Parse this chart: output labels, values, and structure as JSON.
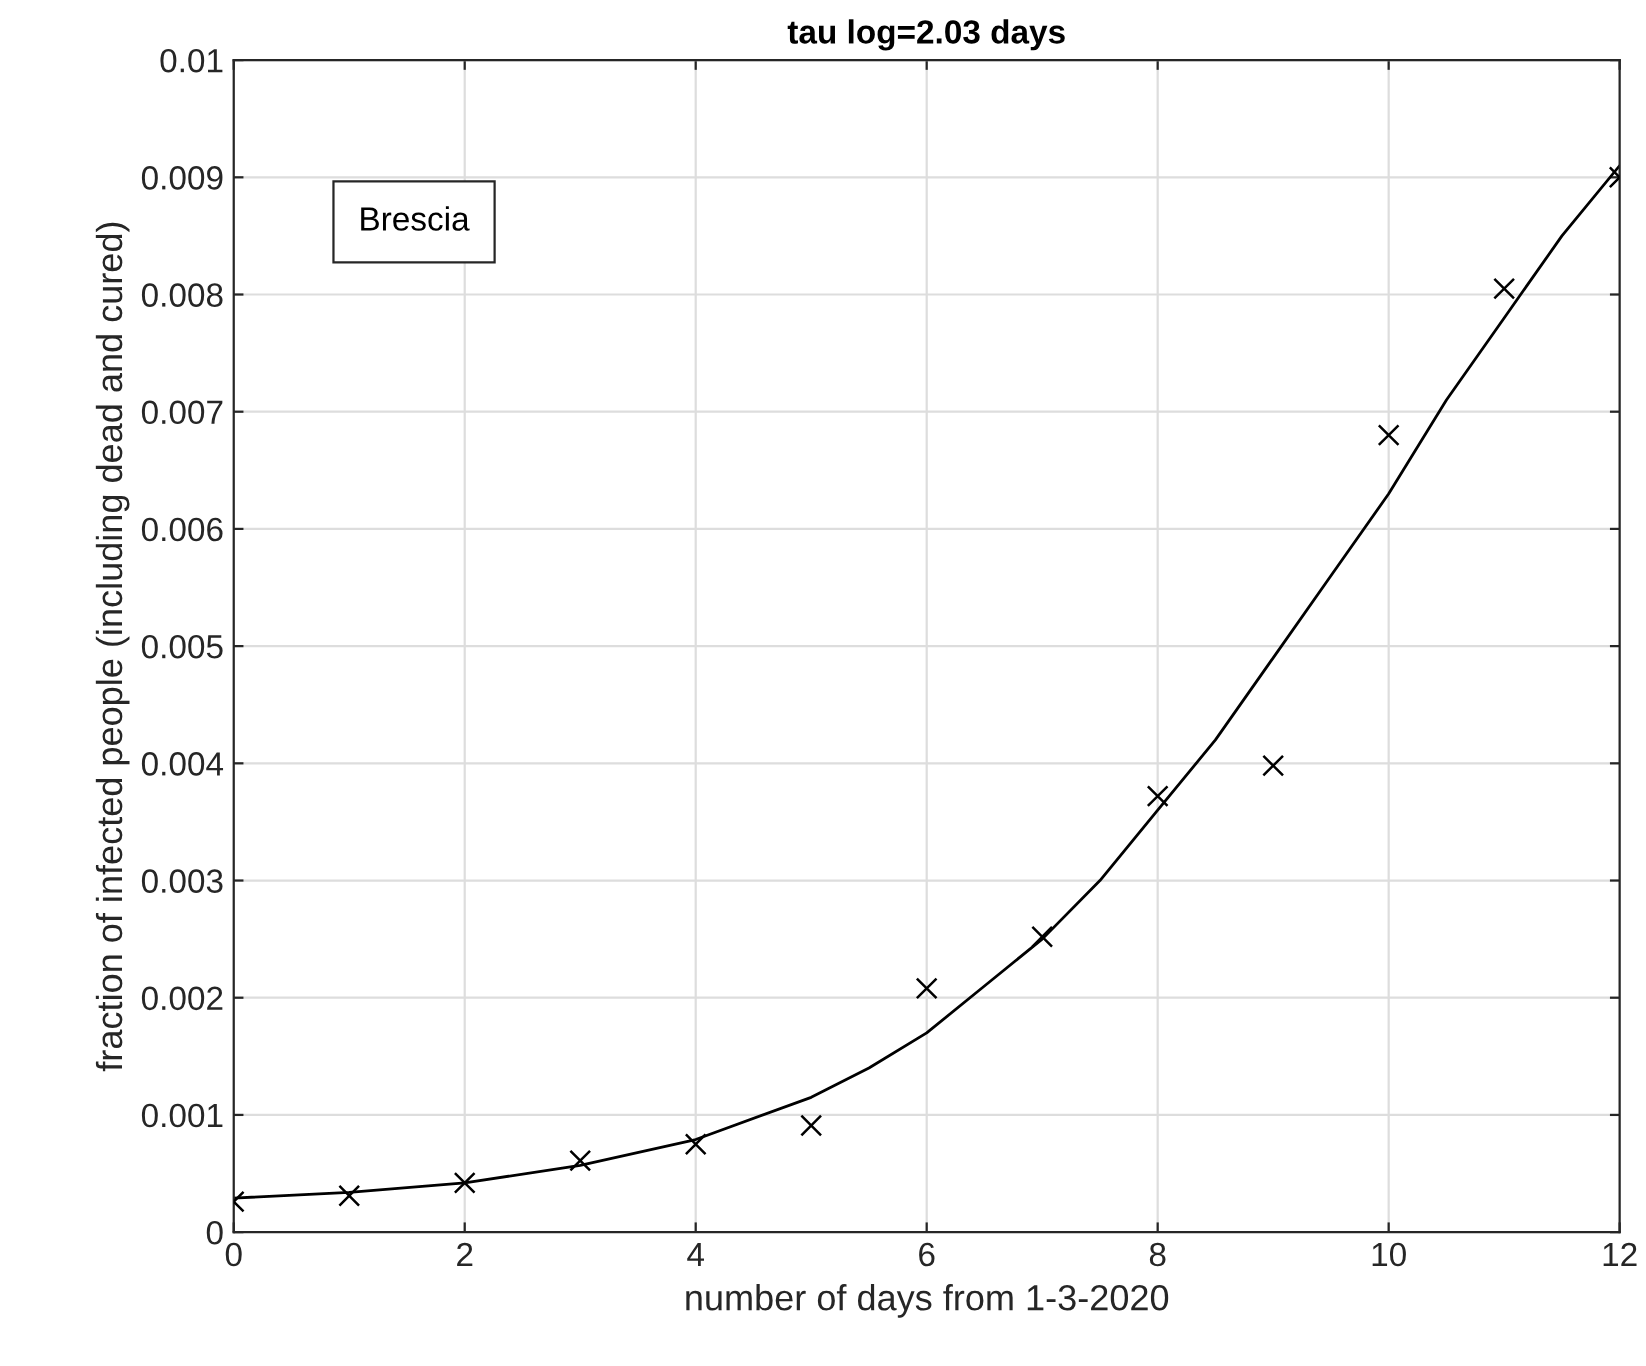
{
  "chart_data": {
    "type": "scatter",
    "title": "tau log=2.03 days",
    "xlabel": "number of days from 1-3-2020",
    "ylabel": "fraction of infected people (including dead and cured)",
    "annotations": [
      "Brescia"
    ],
    "xlim": [
      0,
      12
    ],
    "ylim": [
      0,
      0.01
    ],
    "xticks": [
      0,
      2,
      4,
      6,
      8,
      10,
      12
    ],
    "yticks": [
      0,
      0.001,
      0.002,
      0.003,
      0.004,
      0.005,
      0.006,
      0.007,
      0.008,
      0.009,
      0.01
    ],
    "grid": true,
    "legend": false,
    "series": [
      {
        "marker": "cross",
        "color": "#000000",
        "x": [
          0,
          1,
          2,
          3,
          4,
          5,
          6,
          7,
          8,
          9,
          10,
          11,
          12
        ],
        "values": [
          0.00026,
          0.00031,
          0.00042,
          0.00061,
          0.00075,
          0.00091,
          0.00208,
          0.00252,
          0.00372,
          0.00398,
          0.0068,
          0.00805,
          0.009
        ]
      },
      {
        "type": "line",
        "marker": "none",
        "line_style": "solid",
        "color": "#000000",
        "x": [
          0,
          1,
          2,
          3,
          4,
          5,
          5.5,
          6,
          6.5,
          7,
          7.5,
          8,
          8.5,
          9,
          9.5,
          10,
          10.5,
          11,
          11.5,
          12
        ],
        "values": [
          0.00029,
          0.00034,
          0.00042,
          0.00057,
          0.00079,
          0.00115,
          0.0014,
          0.0017,
          0.0021,
          0.0025,
          0.003,
          0.0036,
          0.0042,
          0.0049,
          0.0056,
          0.0063,
          0.0071,
          0.0078,
          0.0085,
          0.0091
        ]
      }
    ]
  }
}
